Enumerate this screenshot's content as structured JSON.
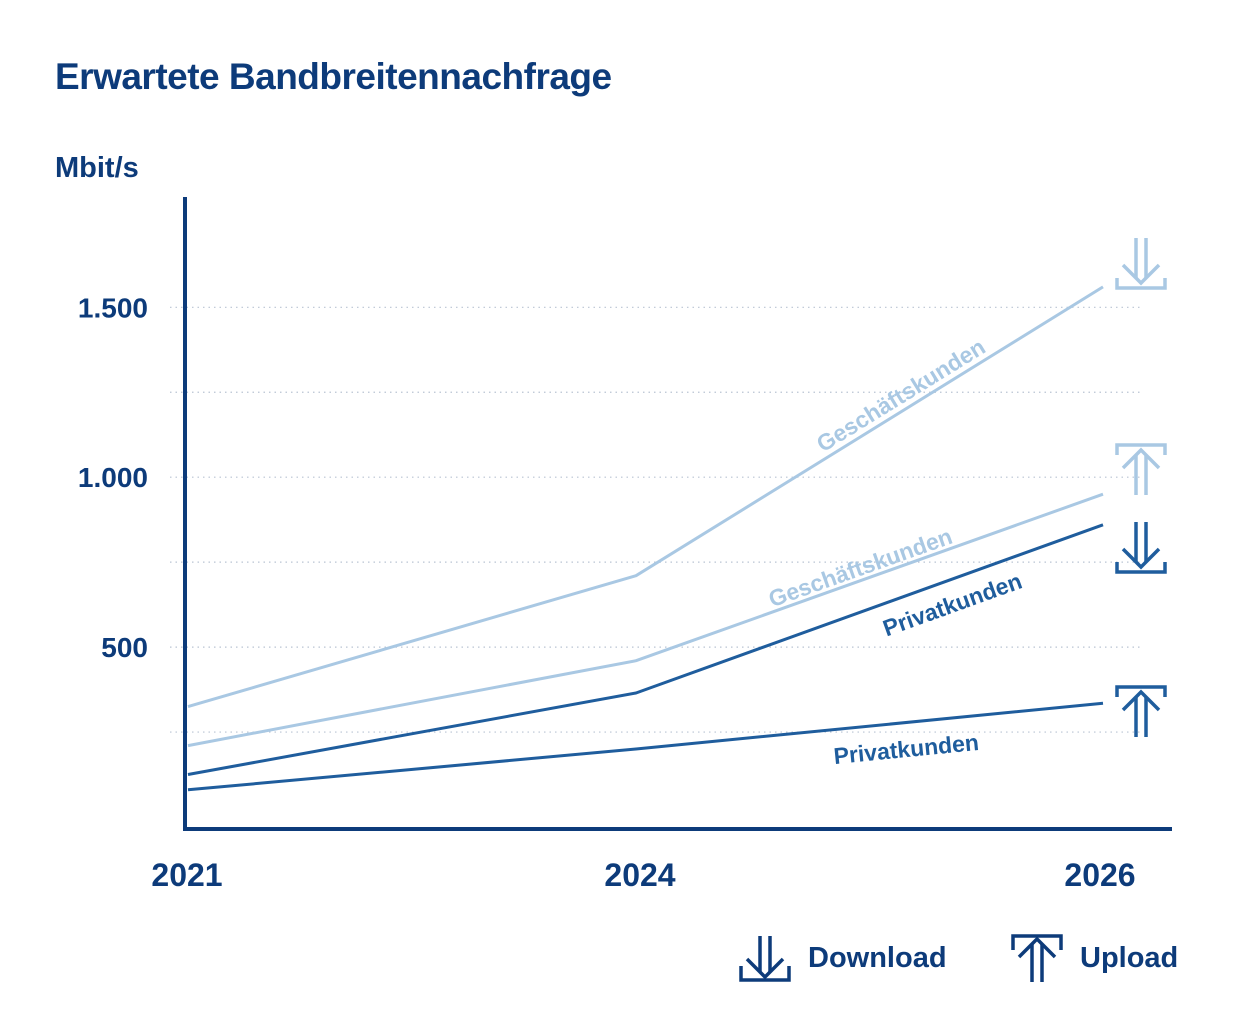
{
  "chart_data": {
    "type": "line",
    "title": "Erwartete Bandbreitennachfrage",
    "ylabel": "Mbit/s",
    "xlabel": "",
    "x": [
      2021,
      2024,
      2026
    ],
    "x_tick_labels": [
      "2021",
      "2024",
      "2026"
    ],
    "y_ticks": [
      500,
      1000,
      1500
    ],
    "y_tick_labels": [
      "500",
      "1.000",
      "1.500"
    ],
    "ylim": [
      0,
      1850
    ],
    "grid": "dotted horizontal",
    "series": [
      {
        "name": "Geschäftskunden",
        "direction": "download",
        "color": "#a9c8e3",
        "values": [
          325,
          710,
          1560
        ]
      },
      {
        "name": "Geschäftskunden",
        "direction": "upload",
        "color": "#a9c8e3",
        "values": [
          210,
          460,
          950
        ]
      },
      {
        "name": "Privatkunden",
        "direction": "download",
        "color": "#1f5d9d",
        "values": [
          125,
          365,
          860
        ]
      },
      {
        "name": "Privatkunden",
        "direction": "upload",
        "color": "#1f5d9d",
        "values": [
          80,
          200,
          335
        ]
      }
    ]
  },
  "legend": {
    "download_label": "Download",
    "upload_label": "Upload",
    "download_icon": "download-icon",
    "upload_icon": "upload-icon"
  },
  "colors": {
    "title": "#0d3b7a",
    "axis": "#0d3b7a",
    "light": "#a9c8e3",
    "dark": "#1f5d9d"
  }
}
